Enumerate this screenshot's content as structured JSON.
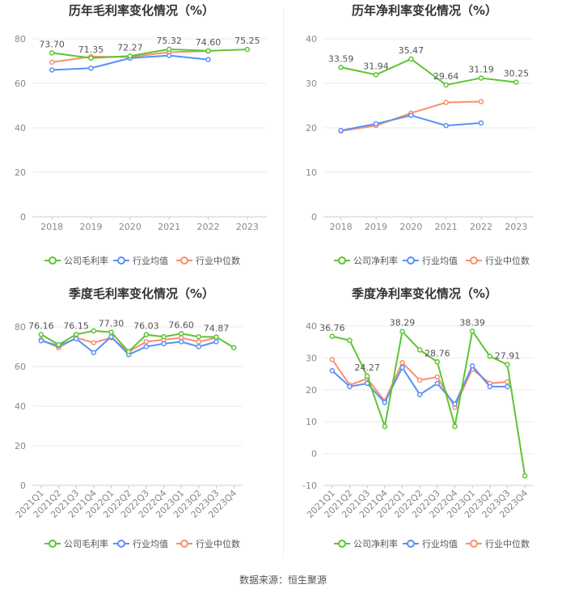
{
  "source": "数据来源：恒生聚源",
  "colors": {
    "company": "#5cc532",
    "avg": "#5b8ff9",
    "median": "#f6906c"
  },
  "chart_data": [
    {
      "type": "line",
      "title": "历年毛利率变化情况（%）",
      "categories": [
        "2018",
        "2019",
        "2020",
        "2021",
        "2022",
        "2023"
      ],
      "ylim": [
        0,
        80
      ],
      "yticks": [
        0,
        20,
        40,
        60,
        80
      ],
      "legend": "bottom",
      "series": [
        {
          "name": "公司毛利率",
          "values": [
            73.7,
            71.35,
            72.27,
            75.32,
            74.6,
            75.25
          ]
        },
        {
          "name": "行业均值",
          "values": [
            66.0,
            66.8,
            71.3,
            72.5,
            70.7,
            null
          ]
        },
        {
          "name": "行业中位数",
          "values": [
            69.5,
            72.0,
            71.8,
            74.0,
            74.5,
            null
          ]
        }
      ],
      "data_labels": [
        "73.70",
        "71.35",
        "72.27",
        "75.32",
        "74.60",
        "75.25"
      ]
    },
    {
      "type": "line",
      "title": "历年净利率变化情况（%）",
      "categories": [
        "2018",
        "2019",
        "2020",
        "2021",
        "2022",
        "2023"
      ],
      "ylim": [
        0,
        40
      ],
      "yticks": [
        0,
        10,
        20,
        30,
        40
      ],
      "legend": "bottom",
      "series": [
        {
          "name": "公司净利率",
          "values": [
            33.59,
            31.94,
            35.47,
            29.64,
            31.19,
            30.25
          ]
        },
        {
          "name": "行业均值",
          "values": [
            19.4,
            20.9,
            22.8,
            20.5,
            21.1,
            null
          ]
        },
        {
          "name": "行业中位数",
          "values": [
            19.3,
            20.5,
            23.3,
            25.7,
            25.9,
            null
          ]
        }
      ],
      "data_labels": [
        "33.59",
        "31.94",
        "35.47",
        "29.64",
        "31.19",
        "30.25"
      ]
    },
    {
      "type": "line",
      "title": "季度毛利率变化情况（%）",
      "categories": [
        "2021Q1",
        "2021Q2",
        "2021Q3",
        "2021Q4",
        "2022Q1",
        "2022Q2",
        "2022Q3",
        "2022Q4",
        "2023Q1",
        "2023Q2",
        "2023Q3",
        "2023Q4"
      ],
      "ylim": [
        0,
        80
      ],
      "yticks": [
        0,
        20,
        40,
        60,
        80
      ],
      "legend": "bottom",
      "series": [
        {
          "name": "公司毛利率",
          "values": [
            76.16,
            71.0,
            76.15,
            78.0,
            77.3,
            67.5,
            76.03,
            75.0,
            76.6,
            75.0,
            74.87,
            69.5
          ]
        },
        {
          "name": "行业均值",
          "values": [
            73.0,
            70.5,
            74.0,
            67.0,
            75.0,
            66.0,
            70.0,
            71.5,
            72.5,
            70.0,
            72.5,
            null
          ]
        },
        {
          "name": "行业中位数",
          "values": [
            73.5,
            69.5,
            74.5,
            72.0,
            74.5,
            67.5,
            72.5,
            73.5,
            74.5,
            72.5,
            74.5,
            null
          ]
        }
      ],
      "data_labels": [
        "76.16",
        "",
        "76.15",
        "",
        "77.30",
        "",
        "76.03",
        "",
        "76.60",
        "",
        "74.87",
        ""
      ]
    },
    {
      "type": "line",
      "title": "季度净利率变化情况（%）",
      "categories": [
        "2021Q1",
        "2021Q2",
        "2021Q3",
        "2021Q4",
        "2022Q1",
        "2022Q2",
        "2022Q3",
        "2022Q4",
        "2023Q1",
        "2023Q2",
        "2023Q3",
        "2023Q4"
      ],
      "ylim": [
        -10,
        40
      ],
      "yticks": [
        -10,
        0,
        10,
        20,
        30,
        40
      ],
      "legend": "bottom",
      "series": [
        {
          "name": "公司净利率",
          "values": [
            36.76,
            35.5,
            24.27,
            8.5,
            38.29,
            32.5,
            28.76,
            8.5,
            38.39,
            30.5,
            27.91,
            -7.0
          ]
        },
        {
          "name": "行业均值",
          "values": [
            26.0,
            21.0,
            22.0,
            16.0,
            27.0,
            18.5,
            22.0,
            15.5,
            27.5,
            21.0,
            21.0,
            null
          ]
        },
        {
          "name": "行业中位数",
          "values": [
            29.5,
            21.5,
            23.5,
            16.5,
            28.5,
            23.0,
            24.0,
            14.5,
            26.5,
            22.0,
            22.5,
            null
          ]
        }
      ],
      "data_labels": [
        "36.76",
        "",
        "24.27",
        "",
        "38.29",
        "",
        "28.76",
        "",
        "38.39",
        "",
        "27.91",
        ""
      ]
    }
  ]
}
